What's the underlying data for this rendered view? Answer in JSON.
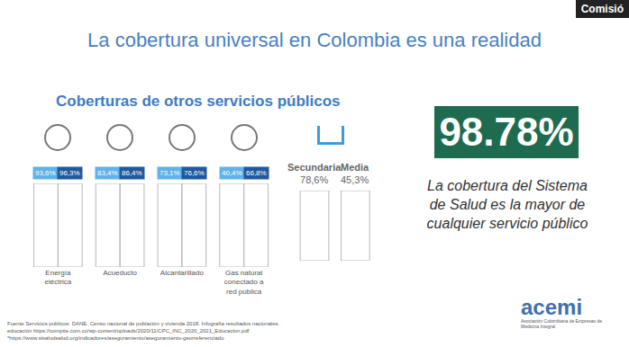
{
  "slide": {
    "title": "La cobertura universal en Colombia es una realidad",
    "corner_label": "Comisió",
    "subtitle": "Coberturas de otros servicios públicos",
    "highlight": "98.78%",
    "caption": "La cobertura del Sistema de Salud es la mayor de cualquier servicio público",
    "sources": [
      "Fuente Servicios públicos: DANE. Censo nacional de población y vivienda 2018. Infografía resultados nacionales.",
      "educación https://compite.com.co/wp-content/uploads/2020/11/CPC_INC_2020_2021_Educacion.pdf",
      "*https://www.sisaludsalud.org/indicadores/aseguramiento/aseguramiento-georreferenciado"
    ],
    "logo": {
      "name": "acemi",
      "tagline": "Asociación Colombiana de Empresas de Medicina Integral"
    }
  },
  "chart_data": [
    {
      "type": "bar",
      "categories": [
        "Energía eléctrica",
        "Acueducto",
        "Alcantarillado",
        "Gas natural conectado a red pública"
      ],
      "series": [
        {
          "color": "#5fb3e6",
          "values": [
            93.6,
            83.4,
            73.1,
            40.4
          ],
          "value_labels": [
            "93,6%",
            "83,4%",
            "73,1%",
            "40,4%"
          ]
        },
        {
          "color": "#1f5aa0",
          "values": [
            96.3,
            86.4,
            76.6,
            66.8
          ],
          "value_labels": [
            "96,3%",
            "86,4%",
            "76,6%",
            "66,8%"
          ]
        }
      ],
      "ylim": [
        0,
        100
      ],
      "data_labels": true,
      "tick_labels": "x"
    },
    {
      "type": "bar",
      "categories": [
        "Secundaria",
        "Media"
      ],
      "values": [
        78.6,
        45.3
      ],
      "value_labels": [
        "78,6%",
        "45,3%"
      ],
      "color": "#1f5aa0",
      "ylim": [
        0,
        100
      ],
      "data_labels": true,
      "tick_labels": false
    }
  ]
}
